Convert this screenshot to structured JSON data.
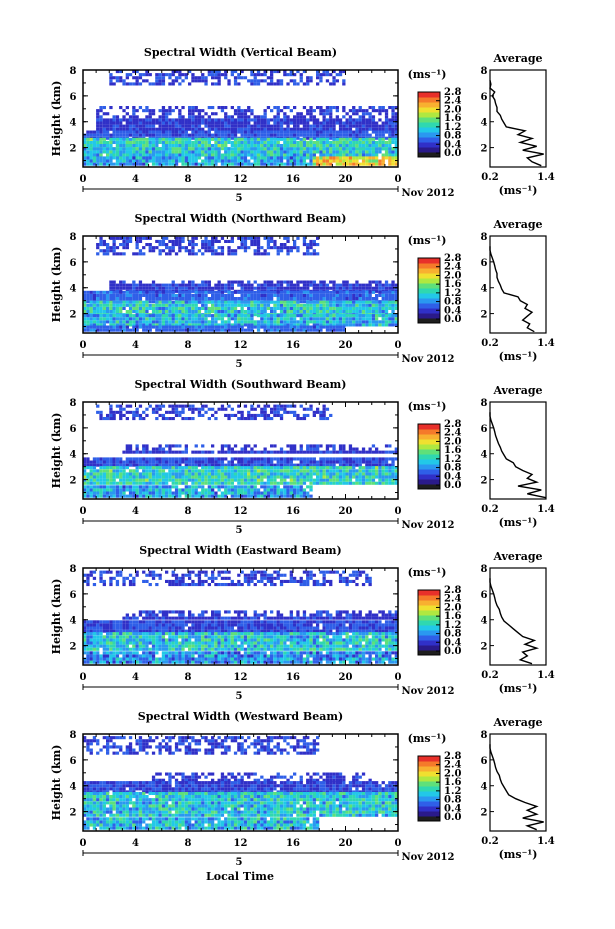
{
  "figure": {
    "xlabel": "Local Time",
    "date_label": "5",
    "month_label": "Nov 2012",
    "colorbar_unit": "(ms⁻¹)",
    "avg_title": "Average",
    "avg_xlabel": "(ms⁻¹)",
    "ylabel": "Height (km)"
  },
  "colors": {
    "scale": [
      "#1e1e1e",
      "#2a1a8a",
      "#3030c8",
      "#2f5fe8",
      "#2a98f0",
      "#22c8e8",
      "#2fd8b0",
      "#5fe07a",
      "#b0e840",
      "#f0e030",
      "#f8b030",
      "#f57a2a",
      "#e8302a"
    ]
  },
  "chart_data": [
    {
      "type": "heatmap",
      "title": "Spectral Width (Vertical Beam)",
      "xlim": [
        0,
        24
      ],
      "ylim": [
        0.5,
        8
      ],
      "xticks": [
        "0",
        "4",
        "8",
        "12",
        "16",
        "20",
        "0"
      ],
      "yticks": [
        "2",
        "4",
        "6",
        "8"
      ],
      "colorbar": {
        "ticks": [
          "0.0",
          "0.4",
          "0.8",
          "1.2",
          "1.6",
          "2.0",
          "2.4",
          "2.8"
        ],
        "range": [
          0,
          2.8
        ]
      },
      "layers": [
        {
          "h_from": 6.8,
          "h_to": 7.8,
          "hours": [
            2,
            20
          ],
          "value": 0.45
        },
        {
          "h_from": 3.3,
          "h_to": 5.2,
          "hours": [
            1,
            24
          ],
          "value": 0.4
        },
        {
          "h_from": 2.6,
          "h_to": 3.3,
          "hours": [
            0,
            24
          ],
          "value": 0.55
        },
        {
          "h_from": 1.8,
          "h_to": 2.6,
          "hours": [
            0,
            24
          ],
          "value": 1.2
        },
        {
          "h_from": 1.3,
          "h_to": 1.8,
          "hours": [
            0,
            24
          ],
          "value": 1.1
        },
        {
          "h_from": 0.6,
          "h_to": 1.3,
          "hours": [
            0,
            17.5
          ],
          "value": 0.9
        },
        {
          "h_from": 0.6,
          "h_to": 1.3,
          "hours": [
            17.5,
            24
          ],
          "value": 2.0
        }
      ],
      "average": {
        "xlim": [
          0.2,
          1.4
        ],
        "xticks": [
          "0.2",
          "1.4"
        ],
        "yticks": [
          "2",
          "4",
          "6",
          "8"
        ],
        "heights": [
          0.6,
          0.9,
          1.2,
          1.5,
          1.8,
          2.1,
          2.4,
          2.7,
          3.0,
          3.3,
          3.6,
          3.9,
          4.2,
          4.5,
          4.8,
          5.1,
          5.4,
          5.7,
          6.0,
          6.3,
          6.6,
          6.9,
          7.2
        ],
        "values": [
          1.3,
          1.1,
          1.0,
          1.35,
          0.9,
          1.2,
          0.85,
          1.1,
          0.8,
          0.95,
          0.55,
          0.5,
          0.45,
          0.42,
          0.35,
          0.35,
          0.32,
          0.3,
          0.25,
          0.3,
          0.2,
          0.22,
          0.2
        ]
      }
    },
    {
      "type": "heatmap",
      "title": "Spectral Width (Northward Beam)",
      "xlim": [
        0,
        24
      ],
      "ylim": [
        0.5,
        8
      ],
      "xticks": [
        "0",
        "4",
        "8",
        "12",
        "16",
        "20",
        "0"
      ],
      "yticks": [
        "2",
        "4",
        "6",
        "8"
      ],
      "colorbar": {
        "ticks": [
          "0.0",
          "0.4",
          "0.8",
          "1.2",
          "1.6",
          "2.0",
          "2.4",
          "2.8"
        ],
        "range": [
          0,
          2.8
        ]
      },
      "layers": [
        {
          "h_from": 6.5,
          "h_to": 7.8,
          "hours": [
            1,
            18
          ],
          "value": 0.45
        },
        {
          "h_from": 3.6,
          "h_to": 4.4,
          "hours": [
            2,
            24
          ],
          "value": 0.4
        },
        {
          "h_from": 2.8,
          "h_to": 3.6,
          "hours": [
            0,
            24
          ],
          "value": 0.6
        },
        {
          "h_from": 1.8,
          "h_to": 2.8,
          "hours": [
            0,
            24
          ],
          "value": 1.1
        },
        {
          "h_from": 1.0,
          "h_to": 1.8,
          "hours": [
            0,
            24
          ],
          "value": 1.0
        },
        {
          "h_from": 0.6,
          "h_to": 1.0,
          "hours": [
            0,
            20
          ],
          "value": 0.6
        }
      ],
      "average": {
        "xlim": [
          0.2,
          1.4
        ],
        "xticks": [
          "0.2",
          "1.4"
        ],
        "yticks": [
          "2",
          "4",
          "6",
          "8"
        ],
        "heights": [
          0.6,
          0.9,
          1.2,
          1.5,
          1.8,
          2.1,
          2.4,
          2.7,
          3.0,
          3.3,
          3.6,
          3.9,
          4.2,
          4.5,
          4.8,
          5.1,
          5.4,
          5.7,
          6.0,
          6.3,
          6.6,
          6.9,
          7.2
        ],
        "values": [
          1.15,
          1.0,
          1.05,
          0.9,
          1.0,
          1.1,
          0.95,
          1.0,
          0.85,
          0.8,
          0.5,
          0.45,
          0.42,
          0.38,
          0.35,
          0.35,
          0.32,
          0.3,
          0.28,
          0.25,
          0.22,
          0.2,
          0.2
        ]
      }
    },
    {
      "type": "heatmap",
      "title": "Spectral Width (Southward Beam)",
      "xlim": [
        0,
        24
      ],
      "ylim": [
        0.5,
        8
      ],
      "xticks": [
        "0",
        "4",
        "8",
        "12",
        "16",
        "20",
        "0"
      ],
      "yticks": [
        "2",
        "4",
        "6",
        "8"
      ],
      "colorbar": {
        "ticks": [
          "0.0",
          "0.4",
          "0.8",
          "1.2",
          "1.6",
          "2.0",
          "2.4",
          "2.8"
        ],
        "range": [
          0,
          2.8
        ]
      },
      "layers": [
        {
          "h_from": 6.6,
          "h_to": 7.8,
          "hours": [
            1,
            19
          ],
          "value": 0.45
        },
        {
          "h_from": 4.0,
          "h_to": 4.6,
          "hours": [
            3,
            24
          ],
          "value": 0.4
        },
        {
          "h_from": 3.0,
          "h_to": 3.6,
          "hours": [
            0,
            24
          ],
          "value": 0.5
        },
        {
          "h_from": 1.6,
          "h_to": 3.0,
          "hours": [
            0,
            24
          ],
          "value": 1.2
        },
        {
          "h_from": 0.6,
          "h_to": 1.4,
          "hours": [
            0,
            17.5
          ],
          "value": 0.9
        }
      ],
      "average": {
        "xlim": [
          0.2,
          1.4
        ],
        "xticks": [
          "0.2",
          "1.4"
        ],
        "yticks": [
          "2",
          "4",
          "6",
          "8"
        ],
        "heights": [
          0.6,
          0.9,
          1.2,
          1.5,
          1.8,
          2.1,
          2.4,
          2.7,
          3.0,
          3.3,
          3.6,
          3.9,
          4.2,
          4.5,
          4.8,
          5.1,
          5.4,
          5.7,
          6.0,
          6.3,
          6.6,
          6.9,
          7.2
        ],
        "values": [
          1.4,
          1.0,
          1.3,
          0.8,
          1.2,
          1.0,
          1.1,
          0.9,
          0.75,
          0.7,
          0.55,
          0.5,
          0.45,
          0.42,
          0.38,
          0.35,
          0.32,
          0.3,
          0.28,
          0.25,
          0.22,
          0.2,
          0.2
        ]
      }
    },
    {
      "type": "heatmap",
      "title": "Spectral Width (Eastward Beam)",
      "xlim": [
        0,
        24
      ],
      "ylim": [
        0.5,
        8
      ],
      "xticks": [
        "0",
        "4",
        "8",
        "12",
        "16",
        "20",
        "0"
      ],
      "yticks": [
        "2",
        "4",
        "6",
        "8"
      ],
      "colorbar": {
        "ticks": [
          "0.0",
          "0.4",
          "0.8",
          "1.2",
          "1.6",
          "2.0",
          "2.4",
          "2.8"
        ],
        "range": [
          0,
          2.8
        ]
      },
      "layers": [
        {
          "h_from": 6.6,
          "h_to": 7.8,
          "hours": [
            0,
            22
          ],
          "value": 0.45
        },
        {
          "h_from": 4.0,
          "h_to": 4.5,
          "hours": [
            3,
            24
          ],
          "value": 0.4
        },
        {
          "h_from": 3.0,
          "h_to": 3.8,
          "hours": [
            0,
            24
          ],
          "value": 0.5
        },
        {
          "h_from": 1.6,
          "h_to": 3.0,
          "hours": [
            0,
            24
          ],
          "value": 1.1
        },
        {
          "h_from": 0.6,
          "h_to": 1.5,
          "hours": [
            0,
            24
          ],
          "value": 0.8
        }
      ],
      "average": {
        "xlim": [
          0.2,
          1.4
        ],
        "xticks": [
          "0.2",
          "1.4"
        ],
        "yticks": [
          "2",
          "4",
          "6",
          "8"
        ],
        "heights": [
          0.6,
          0.9,
          1.2,
          1.5,
          1.8,
          2.1,
          2.4,
          2.7,
          3.0,
          3.3,
          3.6,
          3.9,
          4.2,
          4.5,
          4.8,
          5.1,
          5.4,
          5.7,
          6.0,
          6.3,
          6.6,
          6.9,
          7.2
        ],
        "values": [
          1.1,
          0.85,
          1.0,
          0.9,
          1.2,
          0.95,
          1.15,
          0.9,
          0.8,
          0.7,
          0.6,
          0.5,
          0.45,
          0.42,
          0.4,
          0.35,
          0.32,
          0.3,
          0.28,
          0.25,
          0.22,
          0.2,
          0.2
        ]
      }
    },
    {
      "type": "heatmap",
      "title": "Spectral Width (Westward Beam)",
      "xlim": [
        0,
        24
      ],
      "ylim": [
        0.5,
        8
      ],
      "xticks": [
        "0",
        "4",
        "8",
        "12",
        "16",
        "20",
        "0"
      ],
      "yticks": [
        "2",
        "4",
        "6",
        "8"
      ],
      "colorbar": {
        "ticks": [
          "0.0",
          "0.4",
          "0.8",
          "1.2",
          "1.6",
          "2.0",
          "2.4",
          "2.8"
        ],
        "range": [
          0,
          2.8
        ]
      },
      "layers": [
        {
          "h_from": 6.4,
          "h_to": 7.8,
          "hours": [
            0,
            18
          ],
          "value": 0.45
        },
        {
          "h_from": 4.3,
          "h_to": 4.8,
          "hours": [
            5,
            22
          ],
          "value": 0.4
        },
        {
          "h_from": 3.4,
          "h_to": 4.3,
          "hours": [
            0,
            24
          ],
          "value": 0.45
        },
        {
          "h_from": 1.6,
          "h_to": 3.4,
          "hours": [
            0,
            24
          ],
          "value": 1.1
        },
        {
          "h_from": 0.6,
          "h_to": 1.5,
          "hours": [
            0,
            18
          ],
          "value": 1.0
        }
      ],
      "average": {
        "xlim": [
          0.2,
          1.4
        ],
        "xticks": [
          "0.2",
          "1.4"
        ],
        "yticks": [
          "2",
          "4",
          "6",
          "8"
        ],
        "heights": [
          0.6,
          0.9,
          1.2,
          1.5,
          1.8,
          2.1,
          2.4,
          2.7,
          3.0,
          3.3,
          3.6,
          3.9,
          4.2,
          4.5,
          4.8,
          5.1,
          5.4,
          5.7,
          6.0,
          6.3,
          6.6,
          6.9,
          7.2
        ],
        "values": [
          1.2,
          1.0,
          1.35,
          0.9,
          1.2,
          1.0,
          1.2,
          0.95,
          0.75,
          0.6,
          0.55,
          0.5,
          0.45,
          0.42,
          0.4,
          0.35,
          0.32,
          0.3,
          0.28,
          0.25,
          0.22,
          0.2,
          0.2
        ]
      }
    }
  ]
}
